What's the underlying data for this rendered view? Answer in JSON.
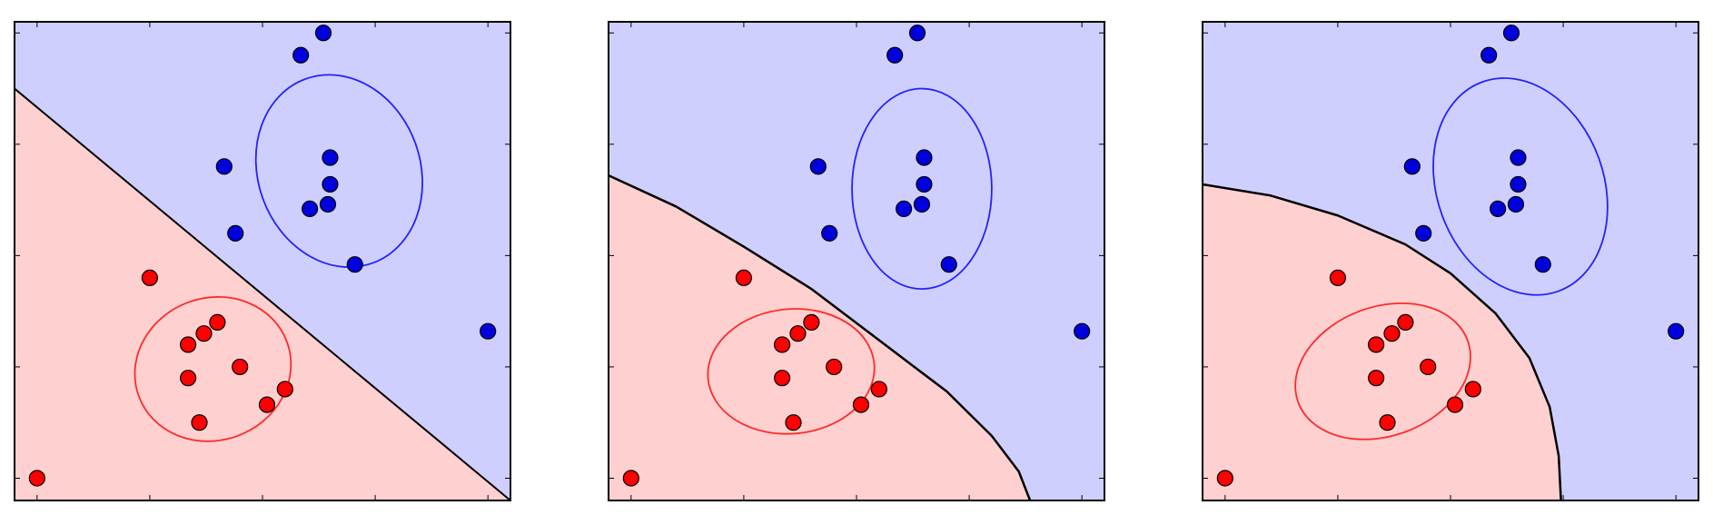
{
  "colors": {
    "class_red": "#ff0000",
    "class_blue": "#0000dd",
    "region_red": "#ffd0d0",
    "region_blue": "#cfcfff",
    "ellipse_red": "#ff2a2a",
    "ellipse_blue": "#2222ff",
    "boundary": "#000000",
    "frame": "#000000"
  },
  "chart_data": [
    {
      "type": "scatter",
      "title": "",
      "xlabel": "",
      "ylabel": "",
      "xlim": [
        0,
        22
      ],
      "ylim": [
        0,
        21.5
      ],
      "xticks": [
        1,
        6,
        11,
        16,
        21
      ],
      "yticks": [
        1,
        6,
        11,
        16,
        21
      ],
      "grid": false,
      "series": [
        {
          "class": "red",
          "points": [
            [
              1,
              1
            ],
            [
              6,
              10
            ],
            [
              7.7,
              7
            ],
            [
              7.7,
              5.5
            ],
            [
              8.2,
              3.5
            ],
            [
              8.4,
              7.5
            ],
            [
              9,
              8
            ],
            [
              10,
              6
            ],
            [
              11.2,
              4.3
            ],
            [
              12,
              5
            ]
          ]
        },
        {
          "class": "blue",
          "points": [
            [
              9.8,
              12
            ],
            [
              9.3,
              15
            ],
            [
              12.7,
              20
            ],
            [
              13.7,
              21
            ],
            [
              13.1,
              13.1
            ],
            [
              13.9,
              13.3
            ],
            [
              14,
              14.2
            ],
            [
              14,
              15.4
            ],
            [
              15.1,
              10.6
            ],
            [
              21,
              7.6
            ]
          ]
        }
      ],
      "ellipses": [
        {
          "class": "red",
          "center": [
            8.8,
            5.9
          ],
          "semi_axes": [
            3.5,
            3.2
          ],
          "rotation_deg": -20
        },
        {
          "class": "blue",
          "center": [
            14.4,
            14.8
          ],
          "semi_axes": [
            3.6,
            4.4
          ],
          "rotation_deg": -20
        }
      ],
      "boundary": {
        "kind": "linear",
        "points": [
          [
            0,
            18.5
          ],
          [
            22,
            0
          ]
        ]
      }
    },
    {
      "type": "scatter",
      "title": "",
      "xlabel": "",
      "ylabel": "",
      "xlim": [
        0,
        22
      ],
      "ylim": [
        0,
        21.5
      ],
      "xticks": [
        1,
        6,
        11,
        16,
        21
      ],
      "yticks": [
        1,
        6,
        11,
        16,
        21
      ],
      "grid": false,
      "series": [
        {
          "class": "red",
          "points": [
            [
              1,
              1
            ],
            [
              6,
              10
            ],
            [
              7.7,
              7
            ],
            [
              7.7,
              5.5
            ],
            [
              8.2,
              3.5
            ],
            [
              8.4,
              7.5
            ],
            [
              9,
              8
            ],
            [
              10,
              6
            ],
            [
              11.2,
              4.3
            ],
            [
              12,
              5
            ]
          ]
        },
        {
          "class": "blue",
          "points": [
            [
              9.8,
              12
            ],
            [
              9.3,
              15
            ],
            [
              12.7,
              20
            ],
            [
              13.7,
              21
            ],
            [
              13.1,
              13.1
            ],
            [
              13.9,
              13.3
            ],
            [
              14,
              14.2
            ],
            [
              14,
              15.4
            ],
            [
              15.1,
              10.6
            ],
            [
              21,
              7.6
            ]
          ]
        }
      ],
      "ellipses": [
        {
          "class": "red",
          "center": [
            8.1,
            5.8
          ],
          "semi_axes": [
            3.7,
            2.8
          ],
          "rotation_deg": -5
        },
        {
          "class": "blue",
          "center": [
            13.9,
            14
          ],
          "semi_axes": [
            3.1,
            4.5
          ],
          "rotation_deg": 0
        }
      ],
      "boundary": {
        "kind": "curved",
        "points": [
          [
            0,
            14.6
          ],
          [
            3,
            13.2
          ],
          [
            6,
            11.4
          ],
          [
            9,
            9.5
          ],
          [
            12,
            7.2
          ],
          [
            15,
            4.9
          ],
          [
            17,
            2.9
          ],
          [
            18.2,
            1.3
          ],
          [
            18.7,
            0
          ]
        ]
      }
    },
    {
      "type": "scatter",
      "title": "",
      "xlabel": "",
      "ylabel": "",
      "xlim": [
        0,
        22
      ],
      "ylim": [
        0,
        21.5
      ],
      "xticks": [
        1,
        6,
        11,
        16,
        21
      ],
      "yticks": [
        1,
        6,
        11,
        16,
        21
      ],
      "grid": false,
      "series": [
        {
          "class": "red",
          "points": [
            [
              1,
              1
            ],
            [
              6,
              10
            ],
            [
              7.7,
              7
            ],
            [
              7.7,
              5.5
            ],
            [
              8.2,
              3.5
            ],
            [
              8.4,
              7.5
            ],
            [
              9,
              8
            ],
            [
              10,
              6
            ],
            [
              11.2,
              4.3
            ],
            [
              12,
              5
            ]
          ]
        },
        {
          "class": "blue",
          "points": [
            [
              9.8,
              12
            ],
            [
              9.3,
              15
            ],
            [
              12.7,
              20
            ],
            [
              13.7,
              21
            ],
            [
              13.1,
              13.1
            ],
            [
              13.9,
              13.3
            ],
            [
              14,
              14.2
            ],
            [
              14,
              15.4
            ],
            [
              15.1,
              10.6
            ],
            [
              21,
              7.6
            ]
          ]
        }
      ],
      "ellipses": [
        {
          "class": "red",
          "center": [
            8.0,
            5.8
          ],
          "semi_axes": [
            4.0,
            2.9
          ],
          "rotation_deg": -20
        },
        {
          "class": "blue",
          "center": [
            14.1,
            14.1
          ],
          "semi_axes": [
            3.7,
            5.0
          ],
          "rotation_deg": -20
        }
      ],
      "boundary": {
        "kind": "curved",
        "points": [
          [
            0,
            14.2
          ],
          [
            3,
            13.7
          ],
          [
            6,
            12.8
          ],
          [
            9,
            11.5
          ],
          [
            11,
            10.2
          ],
          [
            13,
            8.4
          ],
          [
            14.5,
            6.4
          ],
          [
            15.4,
            4.2
          ],
          [
            15.8,
            2.0
          ],
          [
            15.9,
            0
          ]
        ]
      }
    }
  ]
}
